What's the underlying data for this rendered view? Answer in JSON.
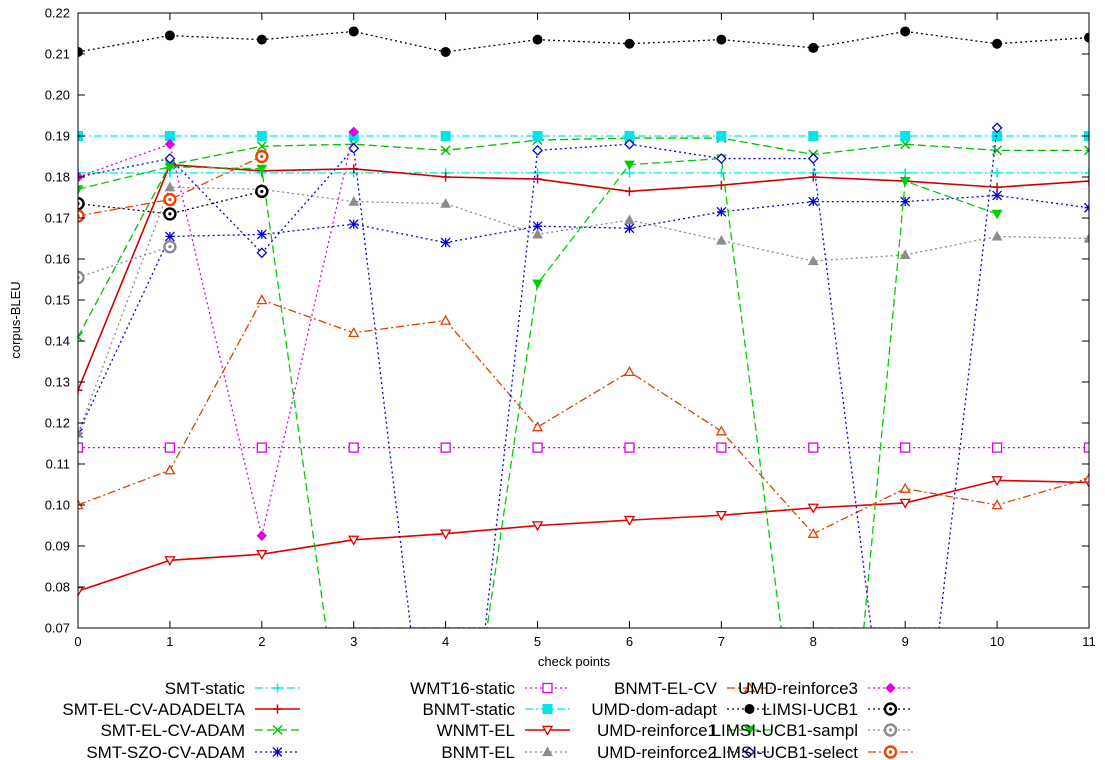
{
  "chart_data": {
    "type": "line",
    "xlabel": "check points",
    "ylabel": "corpus-BLEU",
    "xlim": [
      0,
      11
    ],
    "ylim": [
      0.07,
      0.22
    ],
    "x_ticks": [
      "0",
      "1",
      "2",
      "3",
      "4",
      "5",
      "6",
      "7",
      "8",
      "9",
      "10",
      "11"
    ],
    "y_ticks": [
      "0.07",
      "0.08",
      "0.09",
      "0.10",
      "0.11",
      "0.12",
      "0.13",
      "0.14",
      "0.15",
      "0.16",
      "0.17",
      "0.18",
      "0.19",
      "0.20",
      "0.21",
      "0.22"
    ],
    "grid": false,
    "legend_position": "bottom",
    "series": [
      {
        "name": "SMT-static",
        "color": "#00e5e5",
        "dash": "dashdot",
        "marker": "plus",
        "x": [
          0,
          1,
          2,
          3,
          4,
          5,
          6,
          7,
          8,
          9,
          10,
          11
        ],
        "values": [
          0.181,
          0.181,
          0.181,
          0.181,
          0.181,
          0.181,
          0.181,
          0.181,
          0.181,
          0.181,
          0.181,
          0.181
        ]
      },
      {
        "name": "SMT-EL-CV-ADADELTA",
        "color": "#d00000",
        "dash": "solid",
        "marker": "plus",
        "x": [
          0,
          1,
          2,
          3,
          4,
          5,
          6,
          7,
          8,
          9,
          10,
          11
        ],
        "values": [
          0.128,
          0.183,
          0.1815,
          0.182,
          0.18,
          0.1795,
          0.1765,
          0.178,
          0.18,
          0.179,
          0.1775,
          0.179
        ]
      },
      {
        "name": "SMT-EL-CV-ADAM",
        "color": "#00c000",
        "dash": "dashed",
        "marker": "x",
        "x": [
          0,
          1,
          2,
          3,
          4,
          5,
          6,
          7,
          8,
          9,
          10,
          11
        ],
        "values": [
          0.141,
          0.183,
          0.1875,
          0.188,
          0.1865,
          0.189,
          0.1895,
          0.1895,
          0.1855,
          0.188,
          0.1865,
          0.1865
        ]
      },
      {
        "name": "SMT-SZO-CV-ADAM",
        "color": "#0000e0",
        "dash": "dotted",
        "marker": "star",
        "x": [
          0,
          1,
          2,
          3,
          4,
          5,
          6,
          7,
          8,
          9,
          10,
          11
        ],
        "values": [
          0.1175,
          0.1655,
          0.166,
          0.1685,
          0.164,
          0.168,
          0.1675,
          0.1715,
          0.174,
          0.174,
          0.1755,
          0.1725
        ]
      },
      {
        "name": "WMT16-static",
        "color": "#e000e0",
        "dash": "dotted",
        "marker": "square-open",
        "x": [
          0,
          1,
          2,
          3,
          4,
          5,
          6,
          7,
          8,
          9,
          10,
          11
        ],
        "values": [
          0.114,
          0.114,
          0.114,
          0.114,
          0.114,
          0.114,
          0.114,
          0.114,
          0.114,
          0.114,
          0.114,
          0.114
        ]
      },
      {
        "name": "BNMT-static",
        "color": "#00e5e5",
        "dash": "dashdot",
        "marker": "square-filled",
        "x": [
          0,
          1,
          2,
          3,
          4,
          5,
          6,
          7,
          8,
          9,
          10,
          11
        ],
        "values": [
          0.19,
          0.19,
          0.19,
          0.19,
          0.19,
          0.19,
          0.19,
          0.19,
          0.19,
          0.19,
          0.19,
          0.19
        ]
      },
      {
        "name": "WNMT-EL",
        "color": "#e00000",
        "dash": "solid",
        "marker": "triangle-down-open",
        "x": [
          0,
          1,
          2,
          3,
          4,
          5,
          6,
          7,
          8,
          9,
          10,
          11
        ],
        "values": [
          0.079,
          0.0865,
          0.088,
          0.0915,
          0.093,
          0.095,
          0.0963,
          0.0975,
          0.0993,
          0.1005,
          0.106,
          0.1055
        ]
      },
      {
        "name": "BNMT-EL",
        "color": "#8c8c8c",
        "dash": "dotted",
        "marker": "triangle-filled",
        "x": [
          0,
          1,
          2,
          3,
          4,
          5,
          6,
          7,
          8,
          9,
          10,
          11
        ],
        "values": [
          0.1175,
          0.1775,
          0.177,
          0.174,
          0.1735,
          0.166,
          0.1695,
          0.1645,
          0.1595,
          0.161,
          0.1655,
          0.165
        ]
      },
      {
        "name": "BNMT-EL-CV",
        "color": "#e04000",
        "dash": "dashdot",
        "marker": "triangle-open",
        "x": [
          0,
          1,
          2,
          3,
          4,
          5,
          6,
          7,
          8,
          9,
          10,
          11
        ],
        "values": [
          0.1,
          0.1085,
          0.15,
          0.142,
          0.145,
          0.119,
          0.1325,
          0.118,
          0.093,
          0.104,
          0.1,
          0.1065
        ]
      },
      {
        "name": "UMD-dom-adapt",
        "color": "#000000",
        "dash": "dotted",
        "marker": "circle-filled",
        "x": [
          0,
          1,
          2,
          3,
          4,
          5,
          6,
          7,
          8,
          9,
          10,
          11
        ],
        "values": [
          0.2105,
          0.2145,
          0.2135,
          0.2155,
          0.2105,
          0.2135,
          0.2125,
          0.2135,
          0.2115,
          0.2155,
          0.2125,
          0.214
        ]
      },
      {
        "name": "UMD-reinforce1",
        "color": "#00d000",
        "dash": "dashed",
        "marker": "triangle-down-filled",
        "x": [
          0,
          1,
          2,
          2.7,
          4.45,
          5,
          6,
          7,
          7.65,
          8.55,
          9,
          10
        ],
        "values": [
          0.177,
          0.1825,
          0.182,
          0.07,
          0.07,
          0.154,
          0.183,
          0.1845,
          0.07,
          0.07,
          0.179,
          0.171
        ]
      },
      {
        "name": "UMD-reinforce2",
        "color": "#0000e0",
        "dash": "dotted",
        "marker": "diamond-open",
        "x": [
          0,
          1,
          2,
          3,
          3.62,
          4.43,
          5,
          6,
          7,
          8,
          8.63,
          9.37,
          10
        ],
        "values": [
          0.18,
          0.1845,
          0.1615,
          0.187,
          0.07,
          0.07,
          0.1865,
          0.188,
          0.1845,
          0.1845,
          0.07,
          0.07,
          0.192
        ]
      },
      {
        "name": "UMD-reinforce3",
        "color": "#e000e0",
        "dash": "dotted",
        "marker": "diamond-filled",
        "x": [
          0,
          1,
          2,
          3
        ],
        "values": [
          0.18,
          0.188,
          0.0925,
          0.191
        ]
      },
      {
        "name": "LIMSI-UCB1",
        "color": "#000000",
        "dash": "dotted",
        "marker": "circle-open",
        "x": [
          0,
          1,
          2
        ],
        "values": [
          0.1735,
          0.171,
          0.1765
        ]
      },
      {
        "name": "LIMSI-UCB1-sampl",
        "color": "#8c8c8c",
        "dash": "dotted",
        "marker": "circle-open",
        "x": [
          0,
          1
        ],
        "values": [
          0.1555,
          0.163
        ]
      },
      {
        "name": "LIMSI-UCB1-select",
        "color": "#f04000",
        "dash": "dashdot",
        "marker": "circle-open",
        "x": [
          0,
          1,
          2
        ],
        "values": [
          0.1705,
          0.1745,
          0.185
        ]
      }
    ]
  }
}
